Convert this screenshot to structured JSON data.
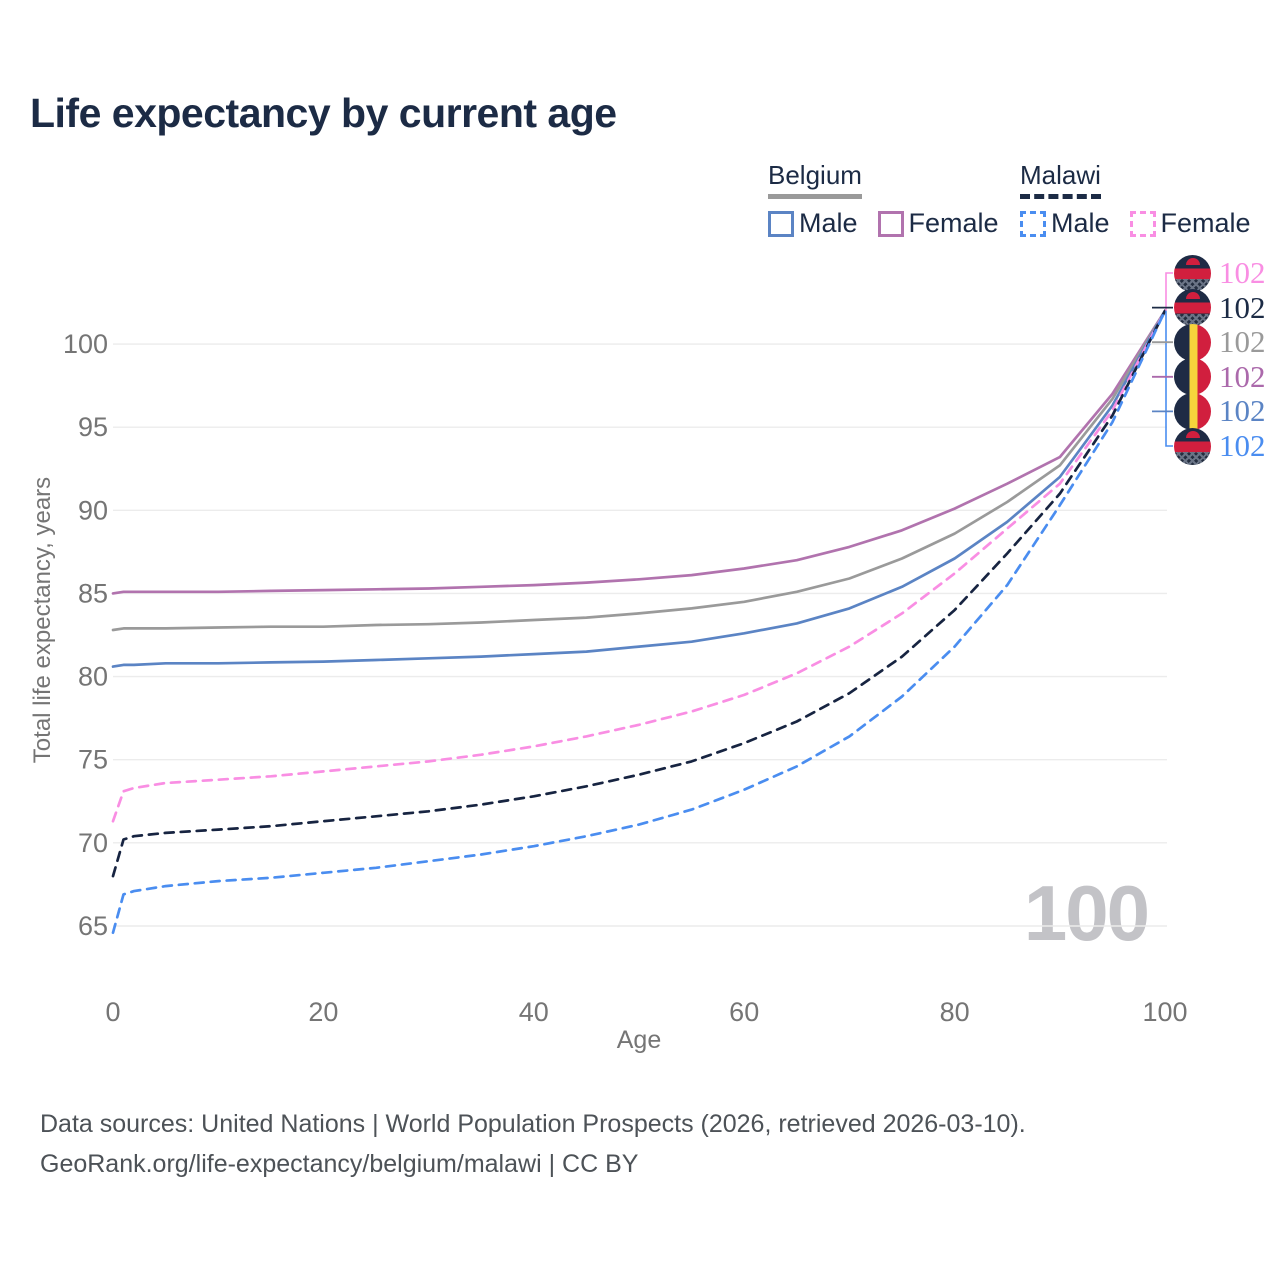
{
  "title": "Life expectancy by current age",
  "legend": {
    "groups": [
      {
        "country": "Belgium",
        "line_style": "solid",
        "items": [
          {
            "label": "Male",
            "color": "#5b84c4"
          },
          {
            "label": "Female",
            "color": "#b173ae"
          }
        ]
      },
      {
        "country": "Malawi",
        "line_style": "dashed",
        "items": [
          {
            "label": "Male",
            "color": "#4a8df0"
          },
          {
            "label": "Female",
            "color": "#f98ee3"
          }
        ]
      }
    ]
  },
  "watermark": "100",
  "footer": {
    "line1": "Data sources: United Nations | World Population Prospects (2026, retrieved 2026-03-10).",
    "line2": "GeoRank.org/life-expectancy/belgium/malawi | CC BY"
  },
  "colors": {
    "title_text": "#1c2b45",
    "axis_text": "#757575",
    "gridline": "#ececec",
    "watermark": "#c3c3c7"
  },
  "chart_data": {
    "type": "line",
    "title": "Life expectancy by current age",
    "xlabel": "Age",
    "ylabel": "Total life expectancy, years",
    "xlim": [
      0,
      100
    ],
    "ylim": [
      63,
      103
    ],
    "x_ticks": [
      0,
      20,
      40,
      60,
      80,
      100
    ],
    "y_ticks": [
      65,
      70,
      75,
      80,
      85,
      90,
      95,
      100
    ],
    "grid": "horizontal",
    "legend_position": "top-right",
    "x": [
      0,
      1,
      2,
      5,
      10,
      15,
      20,
      25,
      30,
      35,
      40,
      45,
      50,
      55,
      60,
      65,
      70,
      75,
      80,
      85,
      90,
      95,
      100
    ],
    "series": [
      {
        "name": "Belgium Female",
        "country": "Belgium",
        "sex": "Female",
        "style": "solid",
        "color": "#b173ae",
        "values": [
          85.0,
          85.1,
          85.1,
          85.1,
          85.1,
          85.15,
          85.2,
          85.25,
          85.3,
          85.4,
          85.5,
          85.65,
          85.85,
          86.1,
          86.5,
          87.0,
          87.8,
          88.8,
          90.1,
          91.6,
          93.2,
          97.0,
          102
        ]
      },
      {
        "name": "Belgium",
        "country": "Belgium",
        "sex": "Both",
        "style": "solid",
        "color": "#9a9a9a",
        "values": [
          82.8,
          82.9,
          82.9,
          82.9,
          82.95,
          83.0,
          83.0,
          83.1,
          83.15,
          83.25,
          83.4,
          83.55,
          83.8,
          84.1,
          84.5,
          85.1,
          85.9,
          87.1,
          88.6,
          90.5,
          92.7,
          96.7,
          102
        ]
      },
      {
        "name": "Belgium Male",
        "country": "Belgium",
        "sex": "Male",
        "style": "solid",
        "color": "#5b84c4",
        "values": [
          80.6,
          80.7,
          80.7,
          80.8,
          80.8,
          80.85,
          80.9,
          81.0,
          81.1,
          81.2,
          81.35,
          81.5,
          81.8,
          82.1,
          82.6,
          83.2,
          84.1,
          85.4,
          87.1,
          89.3,
          92.0,
          96.3,
          102
        ]
      },
      {
        "name": "Malawi Female",
        "country": "Malawi",
        "sex": "Female",
        "style": "dashed",
        "color": "#f98ee3",
        "values": [
          71.3,
          73.1,
          73.3,
          73.6,
          73.8,
          74.0,
          74.3,
          74.6,
          74.9,
          75.3,
          75.8,
          76.4,
          77.1,
          77.9,
          78.9,
          80.2,
          81.8,
          83.8,
          86.2,
          88.9,
          91.6,
          96.0,
          102
        ]
      },
      {
        "name": "Malawi",
        "country": "Malawi",
        "sex": "Both",
        "style": "dashed",
        "color": "#172441",
        "values": [
          68.0,
          70.2,
          70.4,
          70.6,
          70.8,
          71.0,
          71.3,
          71.6,
          71.9,
          72.3,
          72.8,
          73.4,
          74.1,
          74.9,
          76.0,
          77.3,
          79.0,
          81.2,
          84.0,
          87.4,
          91.0,
          95.7,
          102
        ]
      },
      {
        "name": "Malawi Male",
        "country": "Malawi",
        "sex": "Male",
        "style": "dashed",
        "color": "#4a8df0",
        "values": [
          64.6,
          66.9,
          67.1,
          67.4,
          67.7,
          67.9,
          68.2,
          68.5,
          68.9,
          69.3,
          69.8,
          70.4,
          71.1,
          72.0,
          73.2,
          74.6,
          76.4,
          78.8,
          81.8,
          85.5,
          90.3,
          95.3,
          102
        ]
      }
    ],
    "end_labels": [
      {
        "flag": "malawi",
        "series": "Malawi Female",
        "value": "102",
        "color": "#f98ee3"
      },
      {
        "flag": "malawi",
        "series": "Malawi",
        "value": "102",
        "color": "#1c2b45"
      },
      {
        "flag": "belgium",
        "series": "Belgium",
        "value": "102",
        "color": "#9a9a9a"
      },
      {
        "flag": "belgium",
        "series": "Belgium Female",
        "value": "102",
        "color": "#ab69ab"
      },
      {
        "flag": "belgium",
        "series": "Belgium Male",
        "value": "102",
        "color": "#5b84c4"
      },
      {
        "flag": "malawi",
        "series": "Malawi Male",
        "value": "102",
        "color": "#4a8df0"
      }
    ]
  }
}
